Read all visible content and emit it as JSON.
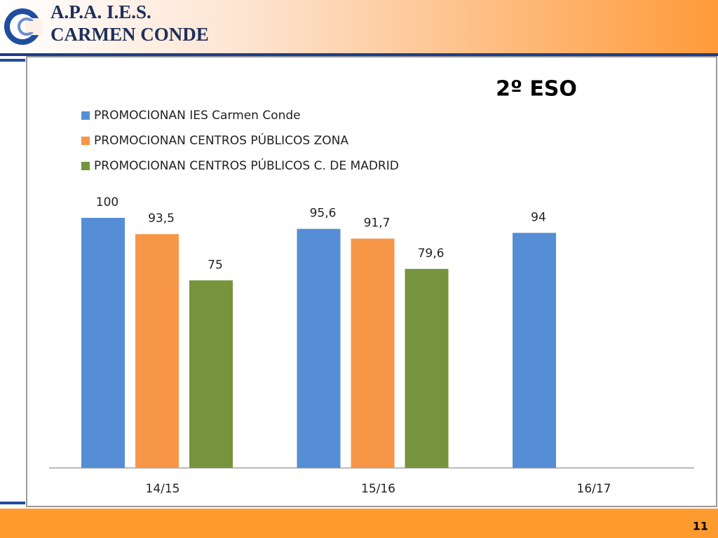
{
  "header": {
    "line1": "A.P.A.  I.E.S.",
    "line2": "CARMEN CONDE"
  },
  "page_number": "11",
  "chart_data": {
    "type": "bar",
    "title": "2º ESO",
    "categories": [
      "14/15",
      "15/16",
      "16/17"
    ],
    "series": [
      {
        "name": "PROMOCIONAN IES Carmen Conde",
        "color": "#558ed5",
        "values": [
          100,
          95.6,
          94
        ],
        "value_labels": [
          "100",
          "95,6",
          "94"
        ]
      },
      {
        "name": "PROMOCIONAN CENTROS PÚBLICOS ZONA",
        "color": "#f79646",
        "values": [
          93.5,
          91.7,
          null
        ],
        "value_labels": [
          "93,5",
          "91,7",
          null
        ]
      },
      {
        "name": "PROMOCIONAN CENTROS PÚBLICOS C. DE MADRID",
        "color": "#77933c",
        "values": [
          75,
          79.6,
          null
        ],
        "value_labels": [
          "75",
          "79,6",
          null
        ]
      }
    ]
  }
}
